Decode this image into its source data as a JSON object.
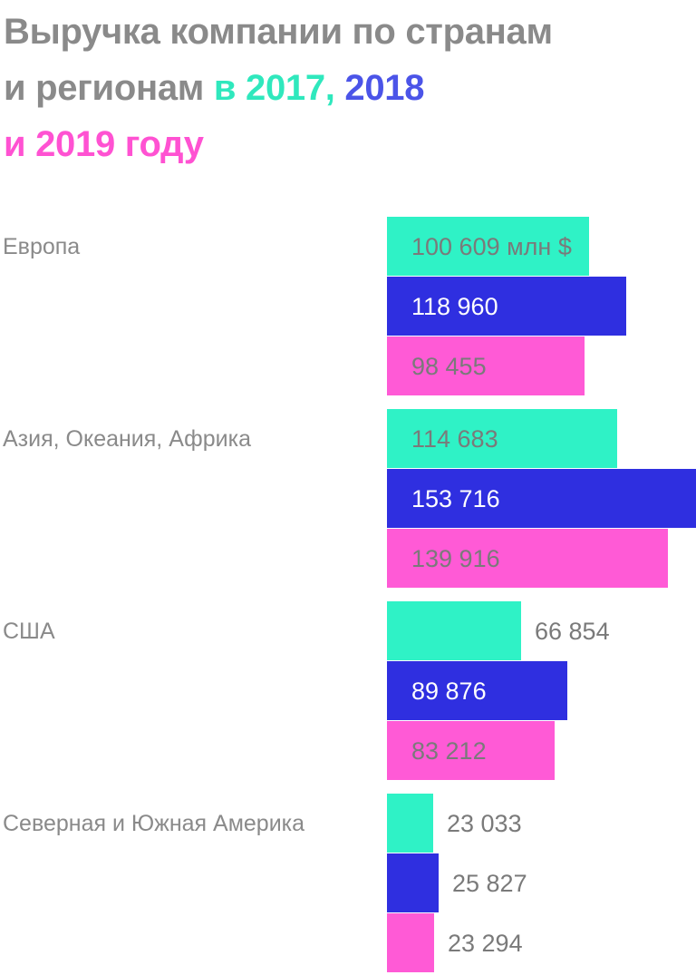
{
  "title": {
    "part1": "Выручка компании по странам",
    "part2": "и регионам ",
    "year1": "в 2017,",
    "year2": " 2018",
    "year3": "и 2019 году"
  },
  "colors": {
    "title_gray": "#8a8a8a",
    "label_gray": "#8a8a8a",
    "y2017": "#2ff2c6",
    "y2018": "#2f2fe0",
    "y2019": "#ff5ad6"
  },
  "chart_data": {
    "type": "bar",
    "orientation": "horizontal",
    "categories": [
      "Европа",
      "Азия, Океания, Африка",
      "США",
      "Северная и Южная Америка"
    ],
    "series": [
      {
        "name": "2017",
        "values": [
          100609,
          114683,
          66854,
          23033
        ]
      },
      {
        "name": "2018",
        "values": [
          118960,
          153716,
          89876,
          25827
        ]
      },
      {
        "name": "2019",
        "values": [
          98455,
          139916,
          83212,
          23294
        ]
      }
    ],
    "value_labels": [
      [
        "100 609 млн $",
        "118 960",
        "98 455"
      ],
      [
        "114 683",
        "153 716",
        "139 916"
      ],
      [
        "66 854",
        "89 876",
        "83 212"
      ],
      [
        "23 033",
        "25 827",
        "23 294"
      ]
    ],
    "xlim": [
      0,
      153716
    ]
  }
}
